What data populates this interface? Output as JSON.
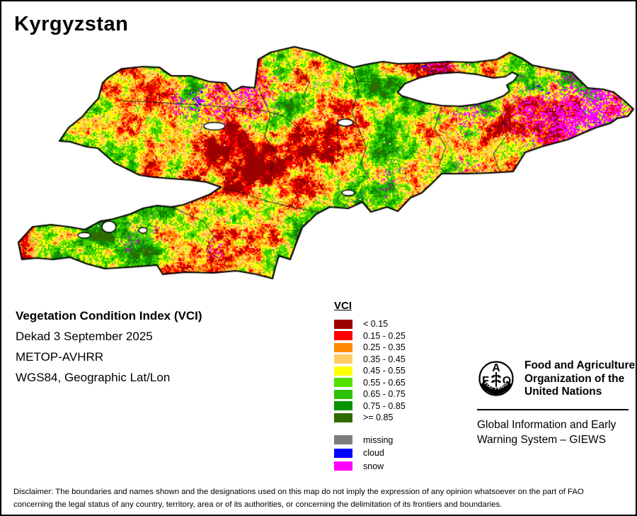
{
  "title": "Kyrgyzstan",
  "info": {
    "heading": "Vegetation Condition Index (VCI)",
    "dekad": "Dekad 3 September 2025",
    "sensor": "METOP-AVHRR",
    "projection": "WGS84, Geographic Lat/Lon"
  },
  "legend": {
    "title": "VCI",
    "classes": [
      {
        "label": "< 0.15",
        "color": "#9B0000"
      },
      {
        "label": "0.15 - 0.25",
        "color": "#FE0000"
      },
      {
        "label": "0.25 - 0.35",
        "color": "#FF8A00"
      },
      {
        "label": "0.35 - 0.45",
        "color": "#FFCC66"
      },
      {
        "label": "0.45 - 0.55",
        "color": "#FFFF00"
      },
      {
        "label": "0.55 - 0.65",
        "color": "#55E000"
      },
      {
        "label": "0.65 - 0.75",
        "color": "#2EC100"
      },
      {
        "label": "0.75 - 0.85",
        "color": "#079400"
      },
      {
        "label": ">= 0.85",
        "color": "#2E6B00"
      }
    ],
    "extras": [
      {
        "label": "missing",
        "color": "#7D7D7D"
      },
      {
        "label": "cloud",
        "color": "#0000FE"
      },
      {
        "label": "snow",
        "color": "#FF00FE"
      }
    ]
  },
  "branding": {
    "org_lines": [
      "Food and Agriculture",
      "Organization of the",
      "United Nations"
    ],
    "logo_letters": {
      "f": "F",
      "a": "A",
      "o": "O"
    },
    "logo_motto": "FIAT PANIS",
    "giews_lines": [
      "Global Information and Early",
      "Warning System – GIEWS"
    ]
  },
  "disclaimer_lines": [
    "Disclaimer: The boundaries and names shown and the designations used on this map do not imply the expression of any opinion whatsoever on the part of FAO",
    "concerning the legal status of any country, territory, area or of its authorities, or concerning the delimitation of its frontiers and boundaries."
  ],
  "map": {
    "country": "Kyrgyzstan",
    "water_fill": "#FFFFFF",
    "border_color": "#000000"
  }
}
